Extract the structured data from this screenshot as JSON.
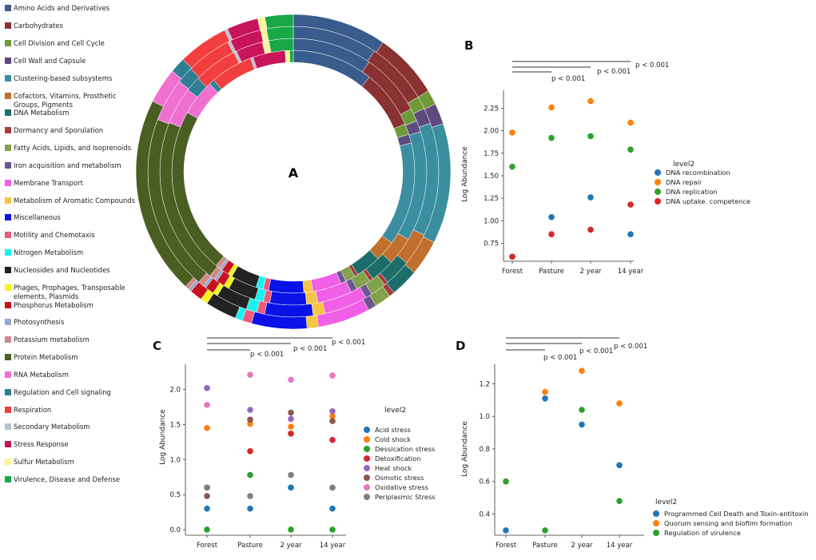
{
  "panelA": {
    "label": "A",
    "legend": [
      {
        "name": "Amino Acids and Derivatives",
        "color": "#3a5c8c"
      },
      {
        "name": "Carbohydrates",
        "color": "#8a3232"
      },
      {
        "name": "Cell Division and Cell Cycle",
        "color": "#6f9a3a"
      },
      {
        "name": "Cell Wall and Capsule",
        "color": "#5e4a7e"
      },
      {
        "name": "Clustering-based subsystems",
        "color": "#3a8ea0"
      },
      {
        "name": "Cofactors, Vitamins,  Prosthetic Groups, Pigments",
        "color": "#c0702c"
      },
      {
        "name": "DNA Metabolism",
        "color": "#1d6e6a"
      },
      {
        "name": "Dormancy and Sporulation",
        "color": "#a63c3c"
      },
      {
        "name": "Fatty Acids, Lipids, and Isoprenoids",
        "color": "#82a14c"
      },
      {
        "name": "Iron acquisition and metabolism",
        "color": "#6b5690"
      },
      {
        "name": "Membrane Transport",
        "color": "#f060e6"
      },
      {
        "name": "Metabolism of Aromatic Compounds",
        "color": "#f5c542"
      },
      {
        "name": "Miscellaneous",
        "color": "#0a12e8"
      },
      {
        "name": "Motility and Chemotaxis",
        "color": "#ee5a78"
      },
      {
        "name": "Nitrogen Metabolism",
        "color": "#18f2f2"
      },
      {
        "name": "Nucleosides and Nucleotides",
        "color": "#222222"
      },
      {
        "name": "Phages, Prophages, Transposable elements, Plasmids",
        "color": "#f5f51a"
      },
      {
        "name": "Phosphorus Metabolism",
        "color": "#c8141e"
      },
      {
        "name": "Photosynthesis",
        "color": "#94a8d0"
      },
      {
        "name": "Potassium metabolism",
        "color": "#d08a8a"
      },
      {
        "name": "Protein Metabolism",
        "color": "#4a5e22"
      },
      {
        "name": "RNA Metabolism",
        "color": "#f070d2"
      },
      {
        "name": "Regulation and Cell signaling",
        "color": "#2e7f92"
      },
      {
        "name": "Respiration",
        "color": "#f23e3e"
      },
      {
        "name": "Secondary Metabolism",
        "color": "#b4c0d6"
      },
      {
        "name": "Stress Response",
        "color": "#c8145a"
      },
      {
        "name": "Sulfur Metabolism",
        "color": "#f9f59a"
      },
      {
        "name": "Virulence, Disease and Defense",
        "color": "#18a848"
      }
    ]
  },
  "chart_data": [
    {
      "panel": "A",
      "type": "pie",
      "subtype": "multi-ring donut",
      "rings": [
        "Forest",
        "Pasture",
        "2 year",
        "14 year"
      ],
      "ring_order_note": "inner ring to outer ring",
      "categories": [
        "Amino Acids and Derivatives",
        "Carbohydrates",
        "Cell Division and Cell Cycle",
        "Cell Wall and Capsule",
        "Clustering-based subsystems",
        "Cofactors, Vitamins,  Prosthetic Groups, Pigments",
        "DNA Metabolism",
        "Dormancy and Sporulation",
        "Fatty Acids, Lipids, and Isoprenoids",
        "Iron acquisition and metabolism",
        "Membrane Transport",
        "Metabolism of Aromatic Compounds",
        "Miscellaneous",
        "Motility and Chemotaxis",
        "Nitrogen Metabolism",
        "Nucleosides and Nucleotides",
        "Phages, Prophages, Transposable elements, Plasmids",
        "Phosphorus Metabolism",
        "Photosynthesis",
        "Potassium metabolism",
        "Protein Metabolism",
        "RNA Metabolism",
        "Regulation and Cell signaling",
        "Respiration",
        "Secondary Metabolism",
        "Stress Response",
        "Sulfur Metabolism",
        "Virulence, Disease and Defense"
      ],
      "series": [
        {
          "name": "Forest",
          "values": [
            9.0,
            6.5,
            1.2,
            1.0,
            11.5,
            2.3,
            2.8,
            0.4,
            1.1,
            0.6,
            3.2,
            1.0,
            3.9,
            0.6,
            0.8,
            2.9,
            0.5,
            0.8,
            0.3,
            0.5,
            18.5,
            4.0,
            0.6,
            4.7,
            0.3,
            3.6,
            0.5,
            0.4
          ]
        },
        {
          "name": "Pasture",
          "values": [
            8.5,
            6.7,
            1.4,
            1.2,
            11.8,
            3.0,
            2.6,
            0.4,
            1.6,
            0.7,
            3.7,
            1.2,
            3.9,
            0.7,
            0.9,
            3.0,
            0.6,
            0.9,
            0.3,
            0.6,
            17.9,
            4.0,
            1.6,
            4.7,
            0.3,
            2.9,
            0.7,
            2.6
          ]
        },
        {
          "name": "2 year",
          "values": [
            8.6,
            6.4,
            1.3,
            1.6,
            11.5,
            3.3,
            2.7,
            0.4,
            1.6,
            0.7,
            4.4,
            1.2,
            4.9,
            0.8,
            1.1,
            3.2,
            0.5,
            0.9,
            0.3,
            0.6,
            17.9,
            4.4,
            1.7,
            4.6,
            0.3,
            3.2,
            0.6,
            2.7
          ]
        },
        {
          "name": "14 year",
          "values": [
            9.0,
            6.3,
            1.4,
            2.0,
            11.5,
            3.4,
            2.7,
            0.5,
            1.6,
            0.8,
            5.0,
            1.1,
            5.3,
            0.9,
            0.7,
            3.0,
            0.7,
            1.2,
            0.3,
            0.4,
            19.0,
            3.4,
            1.5,
            4.8,
            0.3,
            3.0,
            0.7,
            2.7
          ]
        }
      ]
    },
    {
      "panel": "B",
      "type": "scatter",
      "categories": [
        "Forest",
        "Pasture",
        "2 year",
        "14 year"
      ],
      "ylabel": "Log Abundance",
      "xlabel": "",
      "ylim": [
        0.55,
        2.45
      ],
      "yticks": [
        0.75,
        1.0,
        1.25,
        1.5,
        1.75,
        2.0,
        2.25
      ],
      "ytick_labels": [
        "0.75",
        "1.00",
        "1.25",
        "1.50",
        "1.75",
        "2.00",
        "2.25"
      ],
      "legend_title": "level2",
      "series": [
        {
          "name": "DNA recombination",
          "color": "#1f77b4",
          "values": [
            0.6,
            1.04,
            1.26,
            0.85
          ]
        },
        {
          "name": "DNA repair",
          "color": "#ff7f0e",
          "values": [
            1.98,
            2.26,
            2.33,
            2.09
          ]
        },
        {
          "name": "DNA replication",
          "color": "#2ca02c",
          "values": [
            1.6,
            1.92,
            1.94,
            1.79
          ]
        },
        {
          "name": "DNA uptake. competence",
          "color": "#d62728",
          "values": [
            0.6,
            0.85,
            0.9,
            1.18
          ]
        }
      ],
      "significance": [
        {
          "from": "Forest",
          "to": "Pasture",
          "label": "p < 0.001"
        },
        {
          "from": "Forest",
          "to": "2 year",
          "label": "p < 0.001"
        },
        {
          "from": "Forest",
          "to": "14 year",
          "label": "p < 0.001"
        }
      ],
      "panel_label": "B"
    },
    {
      "panel": "C",
      "type": "scatter",
      "categories": [
        "Forest",
        "Pasture",
        "2 year",
        "14 year"
      ],
      "ylabel": "Log Abundance",
      "xlabel": "",
      "ylim": [
        -0.08,
        2.36
      ],
      "yticks": [
        0.0,
        0.5,
        1.0,
        1.5,
        2.0
      ],
      "ytick_labels": [
        "0.0",
        "0.5",
        "1.0",
        "1.5",
        "2.0"
      ],
      "legend_title": "level2",
      "series": [
        {
          "name": "Acid stress",
          "color": "#1f77b4",
          "values": [
            0.3,
            0.3,
            0.6,
            0.3
          ]
        },
        {
          "name": "Cold shock",
          "color": "#ff7f0e",
          "values": [
            1.45,
            1.51,
            1.47,
            1.62
          ]
        },
        {
          "name": "Dessication stress",
          "color": "#2ca02c",
          "values": [
            0.0,
            0.78,
            0.0,
            0.0
          ]
        },
        {
          "name": "Detoxification",
          "color": "#d62728",
          "values": [
            0.6,
            1.12,
            1.37,
            1.28
          ]
        },
        {
          "name": "Heat shock",
          "color": "#9467bd",
          "values": [
            2.02,
            1.71,
            1.58,
            1.69
          ]
        },
        {
          "name": "Osmotic stress",
          "color": "#8c564b",
          "values": [
            0.48,
            1.57,
            1.67,
            1.55
          ]
        },
        {
          "name": "Oxidative stress",
          "color": "#e377c2",
          "values": [
            1.78,
            2.21,
            2.14,
            2.2
          ]
        },
        {
          "name": "Periplasmic Stress",
          "color": "#7f7f7f",
          "values": [
            0.6,
            0.48,
            0.78,
            0.6
          ]
        }
      ],
      "significance": [
        {
          "from": "Forest",
          "to": "Pasture",
          "label": "p < 0.001"
        },
        {
          "from": "Forest",
          "to": "2 year",
          "label": "p < 0.001"
        },
        {
          "from": "Forest",
          "to": "14 year",
          "label": "p < 0.001"
        }
      ],
      "panel_label": "C"
    },
    {
      "panel": "D",
      "type": "scatter",
      "categories": [
        "Forest",
        "Pasture",
        "2 year",
        "14 year"
      ],
      "ylabel": "Log Abundance",
      "xlabel": "",
      "ylim": [
        0.27,
        1.32
      ],
      "yticks": [
        0.4,
        0.6,
        0.8,
        1.0,
        1.2
      ],
      "ytick_labels": [
        "0.4",
        "0.6",
        "0.8",
        "1.0",
        "1.2"
      ],
      "legend_title": "level2",
      "series": [
        {
          "name": "Programmed Cell Death and Toxin-antitoxin",
          "color": "#1f77b4",
          "values": [
            0.3,
            1.11,
            0.95,
            0.7
          ]
        },
        {
          "name": "Quorum sensing and biofilm formation",
          "color": "#ff7f0e",
          "values": [
            0.6,
            1.15,
            1.28,
            1.08
          ]
        },
        {
          "name": "Regulation of virulence",
          "color": "#2ca02c",
          "values": [
            0.6,
            0.3,
            1.04,
            0.48
          ]
        }
      ],
      "significance": [
        {
          "from": "Forest",
          "to": "Pasture",
          "label": "p < 0.001"
        },
        {
          "from": "Forest",
          "to": "2 year",
          "label": "p < 0.001"
        },
        {
          "from": "Forest",
          "to": "14 year",
          "label": "p < 0.001"
        }
      ],
      "panel_label": "D"
    }
  ]
}
